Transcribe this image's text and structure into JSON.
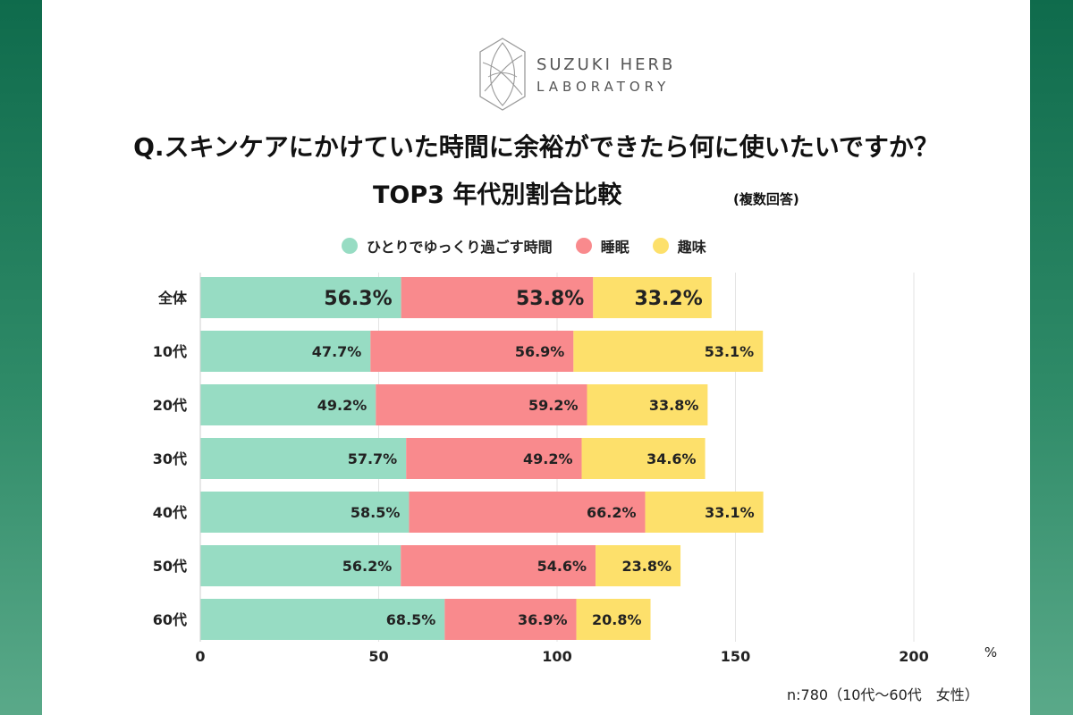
{
  "logo": {
    "line1": "SUZUKI HERB",
    "line2": "LABORATORY"
  },
  "chart_data": {
    "type": "bar",
    "orientation": "horizontal",
    "stacked": true,
    "title": "Q.スキンケアにかけていた時間に余裕ができたら何に使いたいですか？",
    "subtitle": "TOP3 年代別割合比較",
    "subnote": "(複数回答)",
    "categories": [
      "全体",
      "10代",
      "20代",
      "30代",
      "40代",
      "50代",
      "60代"
    ],
    "series": [
      {
        "name": "ひとりでゆっくり過ごす時間",
        "color": "#97dcc3",
        "values": [
          56.3,
          47.7,
          49.2,
          57.7,
          58.5,
          56.2,
          68.5
        ]
      },
      {
        "name": "睡眠",
        "color": "#f98a8d",
        "values": [
          53.8,
          56.9,
          59.2,
          49.2,
          66.2,
          54.6,
          36.9
        ]
      },
      {
        "name": "趣味",
        "color": "#fde06b",
        "values": [
          33.2,
          53.1,
          33.8,
          34.6,
          33.1,
          23.8,
          20.8
        ]
      }
    ],
    "value_labels": [
      [
        "56.3%",
        "53.8%",
        "33.2%"
      ],
      [
        "47.7%",
        "56.9%",
        "53.1%"
      ],
      [
        "49.2%",
        "59.2%",
        "33.8%"
      ],
      [
        "57.7%",
        "49.2%",
        "34.6%"
      ],
      [
        "58.5%",
        "66.2%",
        "33.1%"
      ],
      [
        "56.2%",
        "54.6%",
        "23.8%"
      ],
      [
        "68.5%",
        "36.9%",
        "20.8%"
      ]
    ],
    "xlim": [
      0,
      220
    ],
    "xticks": [
      0,
      50,
      100,
      150,
      200
    ],
    "xtick_labels": [
      "0",
      "50",
      "100",
      "150",
      "200"
    ],
    "unit_label": "%",
    "grid": true,
    "legend_position": "top"
  },
  "footnote": "n:780（10代〜60代　女性）"
}
